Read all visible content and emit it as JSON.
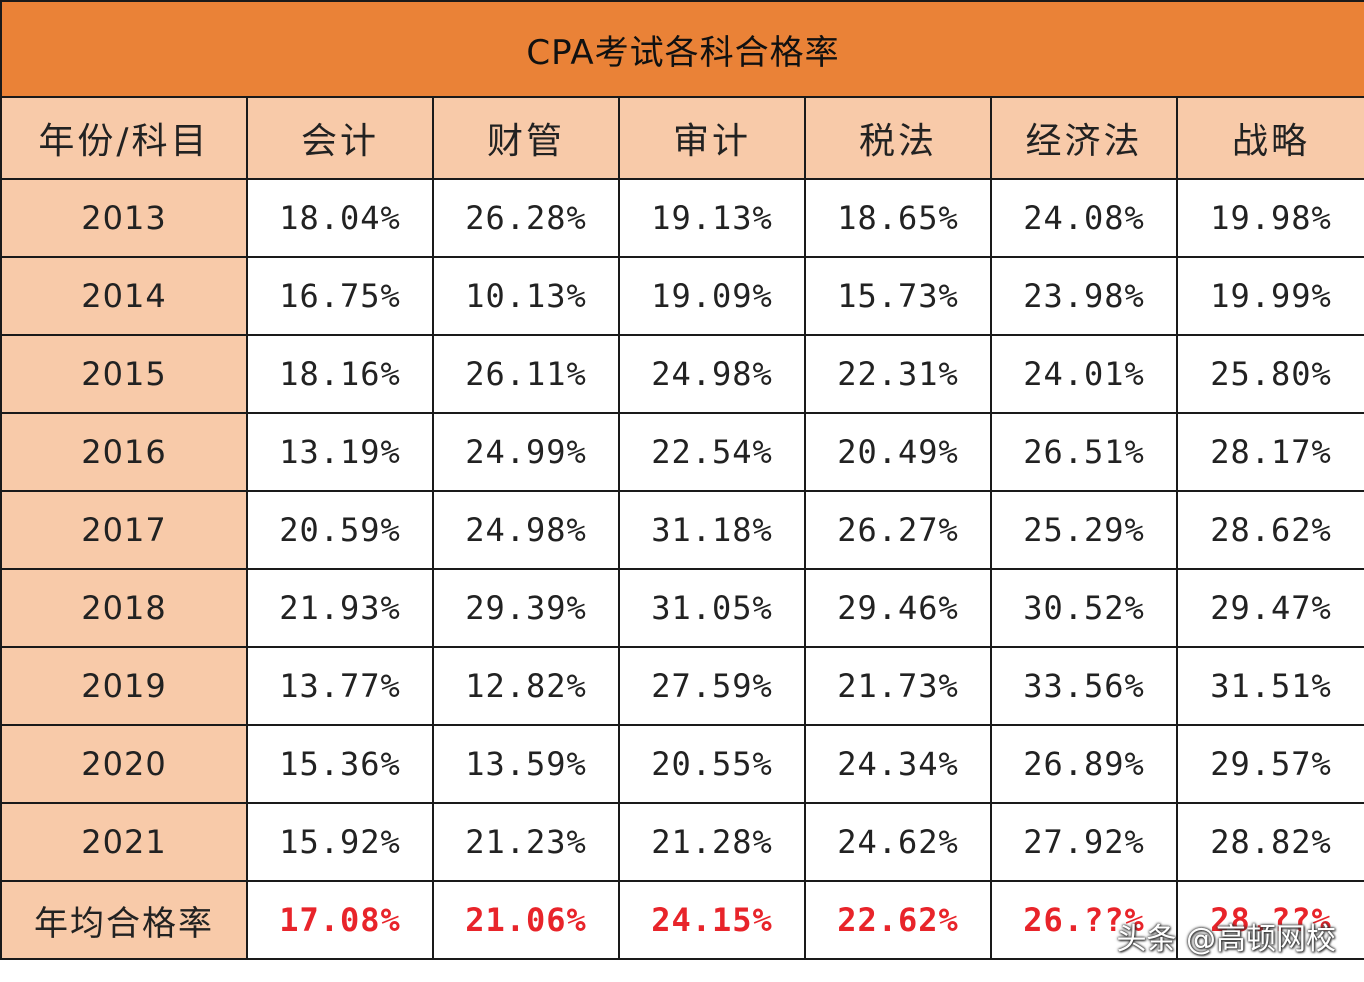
{
  "title": "CPA考试各科合格率",
  "headers": [
    "年份/科目",
    "会计",
    "财管",
    "审计",
    "税法",
    "经济法",
    "战略"
  ],
  "rows": [
    {
      "year": "2013",
      "values": [
        "18.04%",
        "26.28%",
        "19.13%",
        "18.65%",
        "24.08%",
        "19.98%"
      ]
    },
    {
      "year": "2014",
      "values": [
        "16.75%",
        "10.13%",
        "19.09%",
        "15.73%",
        "23.98%",
        "19.99%"
      ]
    },
    {
      "year": "2015",
      "values": [
        "18.16%",
        "26.11%",
        "24.98%",
        "22.31%",
        "24.01%",
        "25.80%"
      ]
    },
    {
      "year": "2016",
      "values": [
        "13.19%",
        "24.99%",
        "22.54%",
        "20.49%",
        "26.51%",
        "28.17%"
      ]
    },
    {
      "year": "2017",
      "values": [
        "20.59%",
        "24.98%",
        "31.18%",
        "26.27%",
        "25.29%",
        "28.62%"
      ]
    },
    {
      "year": "2018",
      "values": [
        "21.93%",
        "29.39%",
        "31.05%",
        "29.46%",
        "30.52%",
        "29.47%"
      ]
    },
    {
      "year": "2019",
      "values": [
        "13.77%",
        "12.82%",
        "27.59%",
        "21.73%",
        "33.56%",
        "31.51%"
      ]
    },
    {
      "year": "2020",
      "values": [
        "15.36%",
        "13.59%",
        "20.55%",
        "24.34%",
        "26.89%",
        "29.57%"
      ]
    },
    {
      "year": "2021",
      "values": [
        "15.92%",
        "21.23%",
        "21.28%",
        "24.62%",
        "27.92%",
        "28.82%"
      ]
    }
  ],
  "average": {
    "label": "年均合格率",
    "values": [
      "17.08%",
      "21.06%",
      "24.15%",
      "22.62%",
      "26.??%",
      "28.??%"
    ]
  },
  "watermark": "头条 @高顿网校",
  "colors": {
    "title_bg": "#ea8237",
    "header_bg": "#f8caa9",
    "average_text": "#e8242a",
    "border": "#1a1a1a"
  }
}
